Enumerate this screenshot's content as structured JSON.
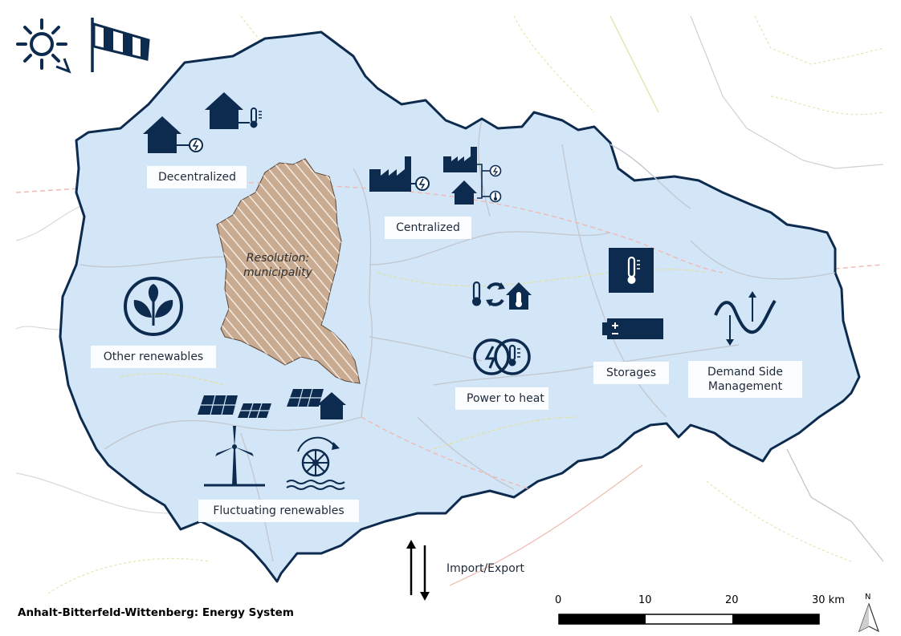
{
  "map": {
    "title": "Anhalt-Bitterfeld-Wittenberg: Energy System",
    "colors": {
      "region_fill": "#d3e6f8",
      "region_border": "#0d2b4e",
      "icon": "#0d2b4e",
      "municipality_fill": "#c9ab91",
      "road_minor": "#e4e29e",
      "rail": "#efb9b0",
      "boundary": "#c7c7c7"
    },
    "labels": {
      "decentralized": "Decentralized",
      "centralized": "Centralized",
      "other_renewables": "Other renewables",
      "resolution_line1": "Resolution:",
      "resolution_line2": "municipality",
      "power_to_heat": "Power to heat",
      "storages": "Storages",
      "dsm_line1": "Demand Side",
      "dsm_line2": "Management",
      "fluctuating_renewables": "Fluctuating renewables",
      "import_export": "Import/Export"
    },
    "scale_bar": {
      "ticks": [
        "0",
        "10",
        "20",
        "30 km"
      ]
    },
    "north_arrow": {
      "label": "N"
    },
    "icons": [
      "sun-icon",
      "windsock-icon",
      "house-plug-icon",
      "house-thermometer-icon",
      "factory-plug-icon",
      "factory-house-icon",
      "leaves-icon",
      "heat-pump-icon",
      "power-to-heat-icon",
      "thermal-storage-icon",
      "battery-icon",
      "sine-wave-icon",
      "solar-panels-icon",
      "solar-roof-icon",
      "wind-turbine-icon",
      "water-wheel-icon",
      "import-export-arrows-icon"
    ]
  }
}
